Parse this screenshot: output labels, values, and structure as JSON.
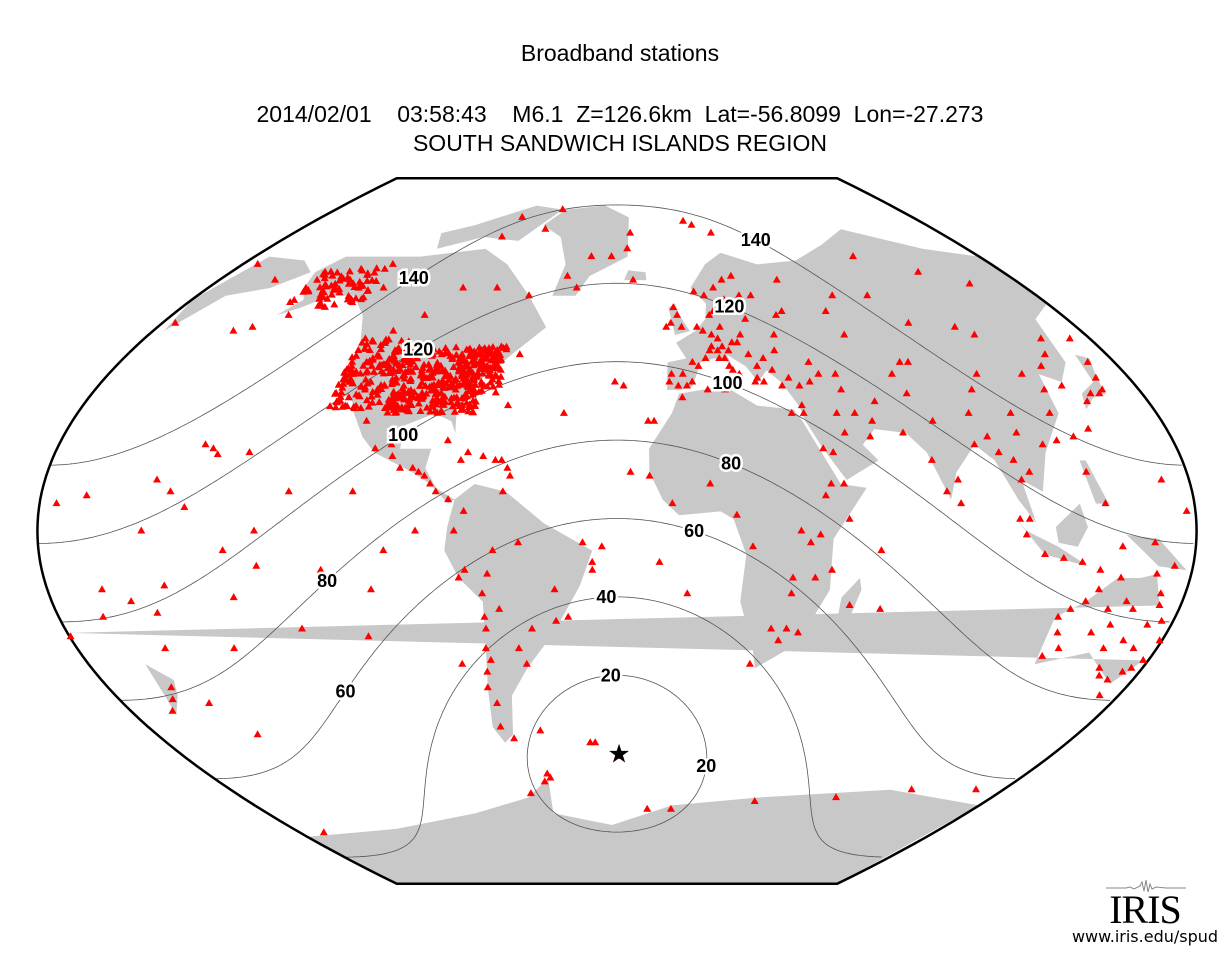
{
  "title": "Broadband stations",
  "subtitle": "2014/02/01    03:58:43    M6.1  Z=126.6km  Lat=-56.8099  Lon=-27.273",
  "region": "SOUTH SANDWICH ISLANDS REGION",
  "logo": {
    "text": "IRIS",
    "url": "www.iris.edu/spud"
  },
  "colors": {
    "land": "#c8c8c8",
    "station": "#ff0000",
    "event": "#000000",
    "contour": "#555555"
  },
  "chart_data": {
    "type": "map",
    "projection": "global pseudo-cylindrical, centered on event longitude",
    "event": {
      "lat": -56.8099,
      "lon": -27.273,
      "symbol": "star"
    },
    "distance_contours_deg": [
      20,
      40,
      60,
      80,
      100,
      120,
      140
    ],
    "stations_symbol": "red triangle",
    "stations": [
      [
        -170,
        -14
      ],
      [
        -157,
        21
      ],
      [
        -155,
        19.5
      ],
      [
        -160,
        22
      ],
      [
        -140,
        -9
      ],
      [
        -149,
        -17
      ],
      [
        -130,
        -25
      ],
      [
        -109,
        -27
      ],
      [
        -175,
        -21
      ],
      [
        -172,
        13
      ],
      [
        -167,
        10
      ],
      [
        -162,
        6
      ],
      [
        -150,
        -5
      ],
      [
        -120,
        -10
      ],
      [
        -100,
        -5
      ],
      [
        -90,
        0
      ],
      [
        -80,
        -34
      ],
      [
        -110,
        10
      ],
      [
        -130,
        10
      ],
      [
        -140,
        0
      ],
      [
        -145,
        20
      ],
      [
        -175,
        0
      ],
      [
        -178,
        -30
      ],
      [
        -176,
        -44
      ],
      [
        -168,
        -52
      ],
      [
        -155,
        -30
      ],
      [
        -125,
        -40
      ],
      [
        -105,
        -15
      ],
      [
        -170,
        52
      ],
      [
        -176,
        51
      ],
      [
        -160,
        55
      ],
      [
        -123,
        49
      ],
      [
        -114,
        51
      ],
      [
        -105,
        55
      ],
      [
        -95,
        62
      ],
      [
        -80,
        62
      ],
      [
        -65,
        60
      ],
      [
        -75,
        45
      ],
      [
        -63,
        45
      ],
      [
        -90,
        75
      ],
      [
        -85,
        80
      ],
      [
        -62,
        82
      ],
      [
        -130,
        62
      ],
      [
        -135,
        68
      ],
      [
        -50,
        65
      ],
      [
        -45,
        62
      ],
      [
        -30,
        70
      ],
      [
        -20,
        76
      ],
      [
        -40,
        70
      ],
      [
        -68,
        77
      ],
      [
        -22,
        72
      ],
      [
        -20,
        64
      ],
      [
        -99,
        19
      ],
      [
        -100,
        22
      ],
      [
        -105,
        21
      ],
      [
        -96,
        16
      ],
      [
        -90,
        15
      ],
      [
        -88,
        14
      ],
      [
        -86,
        12
      ],
      [
        -84,
        10
      ],
      [
        -80,
        8
      ],
      [
        -92,
        16
      ],
      [
        -110,
        28
      ],
      [
        -66,
        18
      ],
      [
        -70,
        19
      ],
      [
        -75,
        20
      ],
      [
        -62,
        16
      ],
      [
        -61,
        14
      ],
      [
        -64,
        18
      ],
      [
        -77,
        18
      ],
      [
        -82,
        23
      ],
      [
        -64,
        32
      ],
      [
        -45,
        30
      ],
      [
        -28,
        38
      ],
      [
        -25,
        37
      ],
      [
        -17,
        28
      ],
      [
        -15,
        28
      ],
      [
        -23,
        15
      ],
      [
        -14,
        -8
      ],
      [
        -5,
        -16
      ],
      [
        -32,
        -4
      ],
      [
        -35,
        -10
      ],
      [
        -26,
        -57.5
      ],
      [
        -36,
        -54
      ],
      [
        -58,
        -62
      ],
      [
        -60,
        -64
      ],
      [
        -38,
        -54
      ],
      [
        -75,
        -10
      ],
      [
        -77,
        -12
      ],
      [
        -70,
        -16
      ],
      [
        -65,
        -20
      ],
      [
        -70,
        -22
      ],
      [
        -70,
        -25
      ],
      [
        -71,
        -30
      ],
      [
        -70,
        -33
      ],
      [
        -72,
        -36
      ],
      [
        -73,
        -40
      ],
      [
        -71,
        -44
      ],
      [
        -72,
        -50
      ],
      [
        -68,
        -53
      ],
      [
        -58,
        -34
      ],
      [
        -60,
        -30
      ],
      [
        -47,
        -15
      ],
      [
        -47,
        -23
      ],
      [
        -43,
        -22
      ],
      [
        -38,
        -3
      ],
      [
        -35,
        -8
      ],
      [
        -63,
        10
      ],
      [
        -66,
        -5
      ],
      [
        -75,
        5
      ],
      [
        -78,
        0
      ],
      [
        -55,
        -25
      ],
      [
        -57,
        -51
      ],
      [
        -68,
        -11
      ],
      [
        -58,
        -3
      ],
      [
        -17,
        14
      ],
      [
        -5,
        34
      ],
      [
        4,
        36
      ],
      [
        10,
        36
      ],
      [
        31,
        30
      ],
      [
        38,
        9
      ],
      [
        36,
        -1
      ],
      [
        33,
        -3
      ],
      [
        28,
        -16
      ],
      [
        18,
        -34
      ],
      [
        26,
        -28
      ],
      [
        28,
        -25
      ],
      [
        32,
        -26
      ],
      [
        47,
        -19
      ],
      [
        57,
        -20
      ],
      [
        15,
        -4
      ],
      [
        10,
        4
      ],
      [
        -10,
        7
      ],
      [
        2,
        12
      ],
      [
        30,
        0
      ],
      [
        40,
        12
      ],
      [
        44,
        12
      ],
      [
        45,
        3
      ],
      [
        28,
        -12
      ],
      [
        23,
        -25
      ],
      [
        35,
        -12
      ],
      [
        40,
        -10
      ],
      [
        55,
        -5
      ],
      [
        -9,
        38
      ],
      [
        -8,
        40
      ],
      [
        -4,
        40
      ],
      [
        -6,
        37
      ],
      [
        -3,
        37
      ],
      [
        -1,
        38
      ],
      [
        2,
        42
      ],
      [
        0,
        43
      ],
      [
        5,
        44
      ],
      [
        7,
        46
      ],
      [
        8,
        47
      ],
      [
        10,
        46
      ],
      [
        12,
        47
      ],
      [
        14,
        46
      ],
      [
        12,
        44
      ],
      [
        14,
        41
      ],
      [
        16,
        40
      ],
      [
        15,
        38
      ],
      [
        13,
        42
      ],
      [
        10,
        44
      ],
      [
        11,
        49
      ],
      [
        13,
        52
      ],
      [
        9,
        50
      ],
      [
        6,
        51
      ],
      [
        4,
        52
      ],
      [
        -2,
        52
      ],
      [
        -3,
        55
      ],
      [
        -6,
        53
      ],
      [
        -8,
        52
      ],
      [
        -4,
        57
      ],
      [
        10,
        55
      ],
      [
        12,
        56
      ],
      [
        18,
        59
      ],
      [
        10,
        60
      ],
      [
        6,
        61
      ],
      [
        15,
        62
      ],
      [
        20,
        64
      ],
      [
        25,
        65
      ],
      [
        25,
        60
      ],
      [
        30,
        60
      ],
      [
        24,
        54
      ],
      [
        20,
        50
      ],
      [
        18,
        48
      ],
      [
        16,
        48
      ],
      [
        21,
        45
      ],
      [
        26,
        44
      ],
      [
        23,
        42
      ],
      [
        22,
        39
      ],
      [
        24,
        38
      ],
      [
        21,
        38
      ],
      [
        28,
        41
      ],
      [
        30,
        37
      ],
      [
        33,
        39
      ],
      [
        36,
        37
      ],
      [
        40,
        38
      ],
      [
        44,
        40
      ],
      [
        42,
        43
      ],
      [
        50,
        40
      ],
      [
        37,
        55
      ],
      [
        40,
        56
      ],
      [
        33,
        50
      ],
      [
        31,
        46
      ],
      [
        16,
        78
      ],
      [
        12,
        79
      ],
      [
        25,
        76
      ],
      [
        58,
        56
      ],
      [
        60,
        50
      ],
      [
        75,
        43
      ],
      [
        78,
        43
      ],
      [
        70,
        40
      ],
      [
        72,
        35
      ],
      [
        60,
        33
      ],
      [
        50,
        36
      ],
      [
        52,
        30
      ],
      [
        57,
        28
      ],
      [
        47,
        25
      ],
      [
        55,
        24
      ],
      [
        46,
        30
      ],
      [
        35,
        32
      ],
      [
        35,
        30
      ],
      [
        42,
        20
      ],
      [
        39,
        21
      ],
      [
        88,
        53
      ],
      [
        90,
        70
      ],
      [
        105,
        52
      ],
      [
        110,
        50
      ],
      [
        100,
        40
      ],
      [
        95,
        36
      ],
      [
        90,
        30
      ],
      [
        104,
        30
      ],
      [
        103,
        25
      ],
      [
        110,
        22
      ],
      [
        115,
        23
      ],
      [
        117,
        30
      ],
      [
        120,
        36
      ],
      [
        116,
        40
      ],
      [
        125,
        42
      ],
      [
        130,
        45
      ],
      [
        127,
        37
      ],
      [
        135,
        35
      ],
      [
        140,
        36
      ],
      [
        138,
        35
      ],
      [
        141,
        39
      ],
      [
        143,
        43
      ],
      [
        132,
        33
      ],
      [
        127,
        26
      ],
      [
        121,
        24
      ],
      [
        121,
        15
      ],
      [
        125,
        7
      ],
      [
        103,
        15
      ],
      [
        99,
        18
      ],
      [
        100,
        13
      ],
      [
        101,
        3
      ],
      [
        98,
        3
      ],
      [
        100,
        -1
      ],
      [
        106,
        -6
      ],
      [
        112,
        -7
      ],
      [
        118,
        -8
      ],
      [
        124,
        -10
      ],
      [
        130,
        -4
      ],
      [
        140,
        -3
      ],
      [
        147,
        -9
      ],
      [
        77,
        28
      ],
      [
        80,
        13
      ],
      [
        88,
        22
      ],
      [
        73,
        18
      ],
      [
        76,
        10
      ],
      [
        66,
        25
      ],
      [
        80,
        7
      ],
      [
        93,
        24
      ],
      [
        95,
        20
      ],
      [
        134,
        49
      ],
      [
        145,
        49
      ],
      [
        158,
        53
      ],
      [
        178,
        64
      ],
      [
        160,
        68
      ],
      [
        130,
        63
      ],
      [
        113,
        66
      ],
      [
        80,
        60
      ],
      [
        65,
        60
      ],
      [
        45,
        64
      ],
      [
        144,
        13
      ],
      [
        150,
        5
      ],
      [
        158,
        7
      ],
      [
        167,
        9
      ],
      [
        170,
        -15
      ],
      [
        167,
        -22
      ],
      [
        178,
        -18
      ],
      [
        175,
        -40
      ],
      [
        172,
        -43
      ],
      [
        168,
        -46
      ],
      [
        116,
        -32
      ],
      [
        115,
        -22
      ],
      [
        118,
        -20
      ],
      [
        122,
        -18
      ],
      [
        125,
        -15
      ],
      [
        131,
        -12
      ],
      [
        133,
        -24
      ],
      [
        135,
        -30
      ],
      [
        138,
        -35
      ],
      [
        140,
        -37
      ],
      [
        144,
        -38
      ],
      [
        147,
        -36
      ],
      [
        149,
        -35
      ],
      [
        151,
        -33
      ],
      [
        152,
        -28
      ],
      [
        153,
        -27
      ],
      [
        146,
        -19
      ],
      [
        145,
        -16
      ],
      [
        142,
        -11
      ],
      [
        146,
        -42
      ],
      [
        128,
        -26
      ],
      [
        130,
        -20
      ],
      [
        138,
        -20
      ],
      [
        140,
        -28
      ],
      [
        145,
        -30
      ],
      [
        149,
        -23
      ],
      [
        120,
        -30
      ],
      [
        117,
        -26
      ],
      [
        135,
        -18
      ],
      [
        145,
        -24
      ],
      [
        -57,
        -63
      ],
      [
        -68,
        -67
      ],
      [
        -12,
        -71
      ],
      [
        0,
        -71
      ],
      [
        40,
        -69
      ],
      [
        78,
        -68
      ],
      [
        110,
        -66
      ],
      [
        140,
        -66
      ],
      [
        166,
        -77
      ]
    ]
  }
}
